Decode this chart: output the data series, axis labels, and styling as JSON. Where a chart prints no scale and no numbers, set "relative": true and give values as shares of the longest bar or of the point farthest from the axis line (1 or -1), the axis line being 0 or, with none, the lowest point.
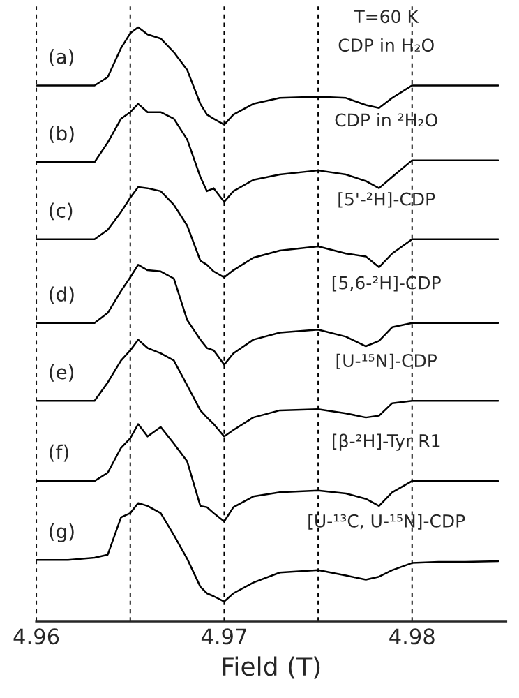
{
  "chart_data": {
    "type": "line",
    "relative": true,
    "xlabel": "Field (T)",
    "x": [
      4.96,
      4.96169,
      4.9631,
      4.9638,
      4.96451,
      4.965,
      4.96542,
      4.96592,
      4.96662,
      4.96732,
      4.96803,
      4.96873,
      4.96908,
      4.96944,
      4.97,
      4.97049,
      4.97155,
      4.97296,
      4.975,
      4.97648,
      4.97754,
      4.97824,
      4.97894,
      4.98,
      4.98141,
      4.98282,
      4.98458
    ],
    "xlim": [
      4.96,
      4.985
    ],
    "xticks": [
      4.96,
      {
        "value": 4.965,
        "label": null
      },
      4.97,
      {
        "value": 4.975,
        "label": null
      },
      4.98
    ],
    "grid": "x",
    "line_style": "solid",
    "marker": "none",
    "series": [
      {
        "name": "(a)",
        "color": "#000000",
        "values": [
          0.902,
          0.902,
          0.902,
          0.916,
          0.965,
          0.99,
          1.0,
          0.988,
          0.981,
          0.958,
          0.928,
          0.871,
          0.853,
          0.846,
          0.836,
          0.853,
          0.871,
          0.881,
          0.883,
          0.881,
          0.869,
          0.864,
          0.881,
          0.902,
          0.902,
          0.902,
          0.902
        ]
      },
      {
        "name": "(b)",
        "color": "#000000",
        "values": [
          0.773,
          0.773,
          0.773,
          0.806,
          0.846,
          0.857,
          0.871,
          0.857,
          0.857,
          0.846,
          0.811,
          0.748,
          0.724,
          0.729,
          0.706,
          0.724,
          0.743,
          0.752,
          0.759,
          0.752,
          0.741,
          0.729,
          0.748,
          0.776,
          0.776,
          0.776,
          0.776
        ]
      },
      {
        "name": "(c)",
        "color": "#000000",
        "values": [
          0.643,
          0.643,
          0.643,
          0.659,
          0.689,
          0.713,
          0.731,
          0.729,
          0.724,
          0.701,
          0.666,
          0.607,
          0.6,
          0.589,
          0.579,
          0.591,
          0.612,
          0.624,
          0.631,
          0.619,
          0.614,
          0.596,
          0.619,
          0.643,
          0.643,
          0.643,
          0.643
        ]
      },
      {
        "name": "(d)",
        "color": "#000000",
        "values": [
          0.502,
          0.502,
          0.502,
          0.519,
          0.556,
          0.579,
          0.6,
          0.591,
          0.589,
          0.577,
          0.507,
          0.474,
          0.46,
          0.456,
          0.432,
          0.451,
          0.474,
          0.486,
          0.491,
          0.479,
          0.463,
          0.472,
          0.495,
          0.502,
          0.502,
          0.502,
          0.502
        ]
      },
      {
        "name": "(e)",
        "color": "#000000",
        "values": [
          0.371,
          0.371,
          0.371,
          0.402,
          0.439,
          0.456,
          0.474,
          0.46,
          0.451,
          0.439,
          0.397,
          0.355,
          0.343,
          0.332,
          0.311,
          0.322,
          0.343,
          0.355,
          0.357,
          0.35,
          0.343,
          0.346,
          0.367,
          0.371,
          0.371,
          0.371,
          0.371
        ]
      },
      {
        "name": "(f)",
        "color": "#000000",
        "values": [
          0.236,
          0.236,
          0.236,
          0.25,
          0.292,
          0.308,
          0.332,
          0.311,
          0.327,
          0.299,
          0.269,
          0.194,
          0.192,
          0.182,
          0.168,
          0.192,
          0.21,
          0.217,
          0.22,
          0.215,
          0.206,
          0.194,
          0.217,
          0.236,
          0.236,
          0.236,
          0.236
        ]
      },
      {
        "name": "(g)",
        "color": "#000000",
        "values": [
          0.103,
          0.103,
          0.107,
          0.112,
          0.175,
          0.182,
          0.199,
          0.194,
          0.182,
          0.145,
          0.105,
          0.058,
          0.047,
          0.042,
          0.033,
          0.047,
          0.065,
          0.082,
          0.086,
          0.077,
          0.07,
          0.075,
          0.086,
          0.098,
          0.1,
          0.1,
          0.101
        ]
      }
    ],
    "annotations": [
      "T=60 K",
      "CDP in H₂O",
      "CDP in ²H₂O",
      "[5'-²H]-CDP",
      "[5,6-²H]-CDP",
      "[U-¹⁵N]-CDP",
      "[β-²H]-Tyr R1",
      "[U-¹³C, U-¹⁵N]-CDP"
    ]
  }
}
